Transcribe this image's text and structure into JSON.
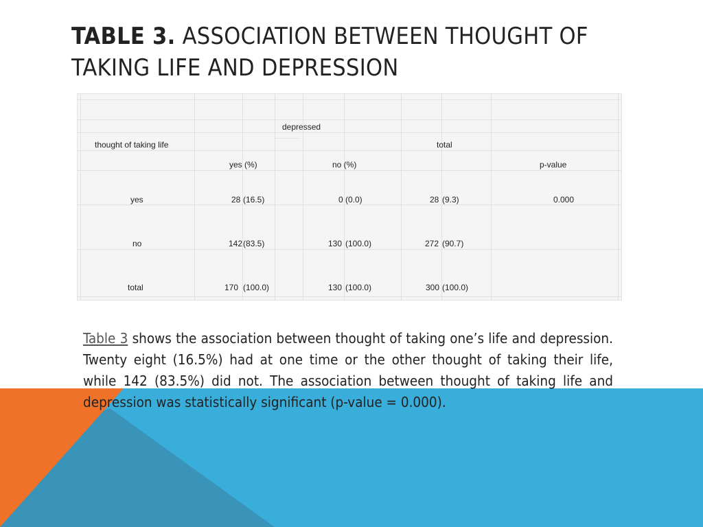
{
  "colors": {
    "accent_blue": "#3aaedb",
    "accent_orange": "#f07228",
    "accent_dark_blue": "#3b8eb3"
  },
  "title": {
    "lead": "Table 3.",
    "rest": " Association between thought of taking life and depression"
  },
  "table": {
    "header_group": "depressed",
    "row_header": "thought of taking life",
    "total_header": "total",
    "col_yes": "yes (%)",
    "col_no": "no (%)",
    "col_pvalue": "p-value",
    "rows": [
      {
        "label": "yes",
        "yes": "28",
        "yes_pct": "(16.5)",
        "no": "0",
        "no_pct": "(0.0)",
        "total": "28",
        "total_pct": "(9.3)",
        "pvalue": "0.000"
      },
      {
        "label": "no",
        "yes": "142",
        "yes_pct": " (83.5)",
        "no": "130",
        "no_pct": "(100.0)",
        "total": "272",
        "total_pct": "(90.7)",
        "pvalue": ""
      },
      {
        "label": "total",
        "yes": "170",
        "yes_pct": "(100.0)",
        "no": "130",
        "no_pct": "(100.0)",
        "total": "300",
        "total_pct": " (100.0)",
        "pvalue": ""
      }
    ]
  },
  "body": {
    "link_text": " Table 3",
    "text": " shows the association between thought of taking one’s life and depression. Twenty eight (16.5%) had at one time or the other thought of taking their life, while 142 (83.5%) did not. The association between thought of taking life and depression was statistically significant (p-value = 0.000)."
  }
}
